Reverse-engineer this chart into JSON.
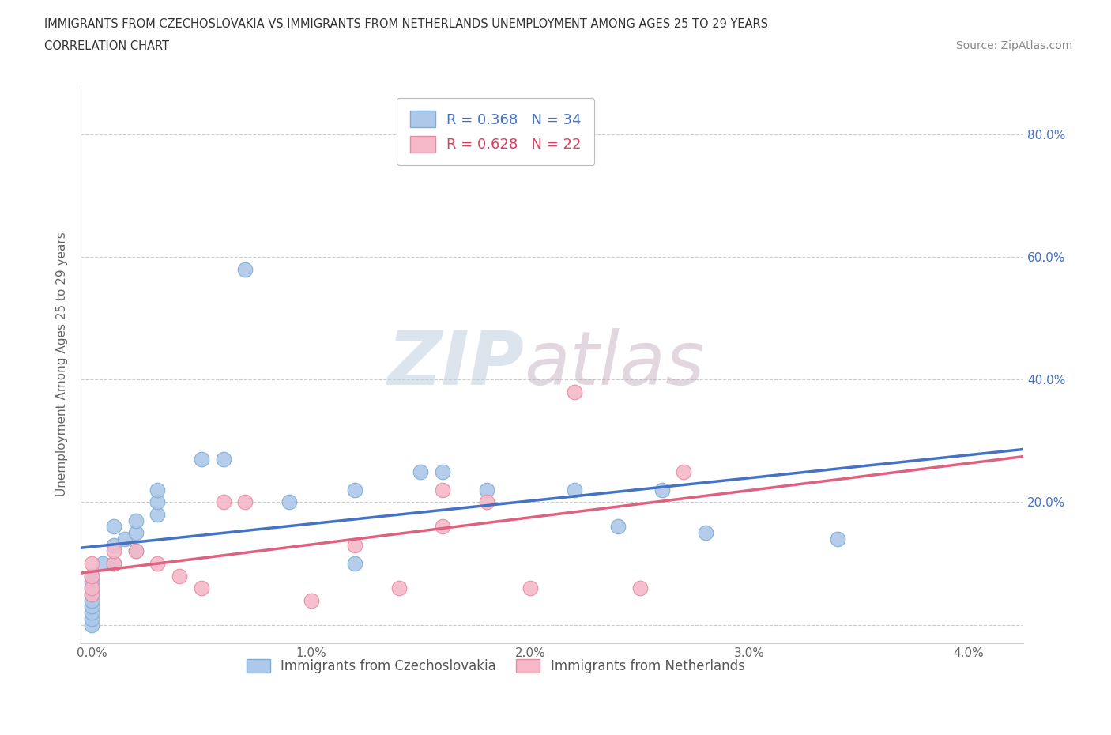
{
  "title_line1": "IMMIGRANTS FROM CZECHOSLOVAKIA VS IMMIGRANTS FROM NETHERLANDS UNEMPLOYMENT AMONG AGES 25 TO 29 YEARS",
  "title_line2": "CORRELATION CHART",
  "source": "Source: ZipAtlas.com",
  "ylabel": "Unemployment Among Ages 25 to 29 years",
  "x_ticks": [
    0.0,
    0.005,
    0.01,
    0.015,
    0.02,
    0.025,
    0.03,
    0.035,
    0.04
  ],
  "x_tick_labels": [
    "0.0%",
    "",
    "1.0%",
    "",
    "2.0%",
    "",
    "3.0%",
    "",
    "4.0%"
  ],
  "y_ticks": [
    0.0,
    0.2,
    0.4,
    0.6,
    0.8
  ],
  "y_tick_labels_right": [
    "",
    "20.0%",
    "40.0%",
    "60.0%",
    "80.0%"
  ],
  "xlim": [
    -0.0005,
    0.0425
  ],
  "ylim": [
    -0.03,
    0.88
  ],
  "legend_entries": [
    {
      "label": "Immigrants from Czechoslovakia",
      "color": "#adc8e8",
      "border_color": "#7aadd4",
      "R": "0.368",
      "N": "34",
      "R_color": "#4472c4",
      "N_color": "#4472c4"
    },
    {
      "label": "Immigrants from Netherlands",
      "color": "#f4b8c8",
      "border_color": "#e88aa0",
      "R": "0.628",
      "N": "22",
      "R_color": "#d94060",
      "N_color": "#d94060"
    }
  ],
  "series1_color": "#adc8e8",
  "series1_edge_color": "#7aadd4",
  "series1_line_color": "#4472c4",
  "series2_color": "#f4b8c8",
  "series2_edge_color": "#e88aa0",
  "series2_line_color": "#e06080",
  "watermark_ZIP": "ZIP",
  "watermark_atlas": "atlas",
  "background_color": "#ffffff",
  "grid_color": "#cccccc",
  "series1_x": [
    0.0,
    0.0,
    0.0,
    0.0,
    0.0,
    0.0,
    0.0,
    0.0,
    0.0,
    0.0005,
    0.001,
    0.001,
    0.001,
    0.0015,
    0.002,
    0.002,
    0.002,
    0.003,
    0.003,
    0.003,
    0.005,
    0.006,
    0.007,
    0.009,
    0.012,
    0.012,
    0.015,
    0.016,
    0.018,
    0.022,
    0.024,
    0.026,
    0.028,
    0.034
  ],
  "series1_y": [
    0.0,
    0.01,
    0.02,
    0.03,
    0.04,
    0.05,
    0.06,
    0.07,
    0.08,
    0.1,
    0.1,
    0.13,
    0.16,
    0.14,
    0.12,
    0.15,
    0.17,
    0.18,
    0.2,
    0.22,
    0.27,
    0.27,
    0.58,
    0.2,
    0.1,
    0.22,
    0.25,
    0.25,
    0.22,
    0.22,
    0.16,
    0.22,
    0.15,
    0.14
  ],
  "series2_x": [
    0.0,
    0.0,
    0.0,
    0.0,
    0.001,
    0.001,
    0.002,
    0.003,
    0.004,
    0.005,
    0.006,
    0.007,
    0.01,
    0.012,
    0.014,
    0.016,
    0.016,
    0.018,
    0.02,
    0.022,
    0.025,
    0.027
  ],
  "series2_y": [
    0.05,
    0.06,
    0.08,
    0.1,
    0.1,
    0.12,
    0.12,
    0.1,
    0.08,
    0.06,
    0.2,
    0.2,
    0.04,
    0.13,
    0.06,
    0.22,
    0.16,
    0.2,
    0.06,
    0.38,
    0.06,
    0.25
  ]
}
